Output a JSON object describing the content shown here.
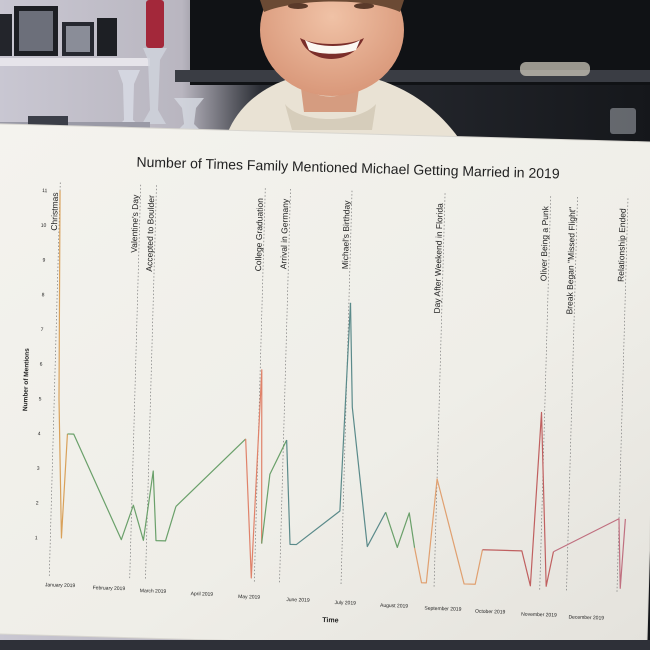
{
  "chart_data": {
    "type": "line",
    "title": "Number of Times Family Mentioned Michael Getting Married in 2019",
    "xlabel": "Time",
    "ylabel": "Number of Mentions",
    "yticks": [
      1,
      2,
      3,
      4,
      5,
      6,
      7,
      8,
      9,
      10,
      11
    ],
    "ylim": [
      0,
      11
    ],
    "xticks": [
      "January 2019",
      "February 2019",
      "March 2019",
      "April 2019",
      "May 2019",
      "June 2019",
      "July 2019",
      "August 2019",
      "September 2019",
      "October 2019",
      "November 2019",
      "December 2019"
    ],
    "events": [
      {
        "label": "Christmas",
        "date": "2018-12-25"
      },
      {
        "label": "Valentine's Day",
        "date": "2019-02-14"
      },
      {
        "label": "Accepted to Boulder",
        "date": "2019-02-24"
      },
      {
        "label": "College Graduation",
        "date": "2019-05-04"
      },
      {
        "label": "Arrival in Germany",
        "date": "2019-05-20"
      },
      {
        "label": "Michael's Birthday",
        "date": "2019-06-28"
      },
      {
        "label": "Day After Weekend in Florida",
        "date": "2019-08-26"
      },
      {
        "label": "Oliver Being a Punk",
        "date": "2019-11-01"
      },
      {
        "label": "Break Began \"Missed Flight\"",
        "date": "2019-11-18"
      },
      {
        "label": "Relationship Ended",
        "date": "2019-12-20"
      }
    ],
    "series": [
      {
        "color": "#d9a15a",
        "x": [
          "2018-12-25",
          "2018-12-28",
          "2019-01-01",
          "2019-01-03"
        ],
        "y": [
          11,
          5,
          1,
          4
        ]
      },
      {
        "color": "#6aa06a",
        "x": [
          "2019-01-03",
          "2019-01-07",
          "2019-02-08",
          "2019-02-15",
          "2019-02-22",
          "2019-02-27",
          "2019-03-02",
          "2019-03-08",
          "2019-03-14"
        ],
        "y": [
          4,
          4,
          1,
          2,
          1,
          3,
          1,
          1,
          2
        ]
      },
      {
        "color": "#6aa06a",
        "x": [
          "2019-03-14",
          "2019-04-26"
        ],
        "y": [
          2,
          4
        ]
      },
      {
        "color": "#e0826a",
        "x": [
          "2019-04-26",
          "2019-05-02",
          "2019-05-05",
          "2019-05-08"
        ],
        "y": [
          4,
          0,
          6,
          1
        ]
      },
      {
        "color": "#6aa06a",
        "x": [
          "2019-05-08",
          "2019-05-12",
          "2019-05-22"
        ],
        "y": [
          1,
          3,
          4
        ]
      },
      {
        "color": "#5a8a8a",
        "x": [
          "2019-05-22",
          "2019-05-26",
          "2019-05-30",
          "2019-06-26",
          "2019-06-29"
        ],
        "y": [
          4,
          1,
          1,
          2,
          8
        ]
      },
      {
        "color": "#5a8a8a",
        "x": [
          "2019-06-29",
          "2019-07-02",
          "2019-07-14",
          "2019-07-25"
        ],
        "y": [
          8,
          5,
          1,
          2
        ]
      },
      {
        "color": "#6aa06a",
        "x": [
          "2019-07-25",
          "2019-08-02",
          "2019-08-09",
          "2019-08-13"
        ],
        "y": [
          2,
          1,
          2,
          1
        ]
      },
      {
        "color": "#e0a070",
        "x": [
          "2019-08-13",
          "2019-08-18",
          "2019-08-21",
          "2019-08-26",
          "2019-09-14",
          "2019-09-21",
          "2019-09-25"
        ],
        "y": [
          1,
          0,
          0,
          3,
          0,
          0,
          1
        ]
      },
      {
        "color": "#c06060",
        "x": [
          "2019-09-25",
          "2019-10-04",
          "2019-10-20",
          "2019-10-26",
          "2019-10-30",
          "2019-11-05",
          "2019-11-09"
        ],
        "y": [
          1,
          1,
          1,
          0,
          5,
          0,
          1
        ]
      },
      {
        "color": "#c07080",
        "x": [
          "2019-11-09",
          "2019-12-20",
          "2019-12-22",
          "2019-12-24"
        ],
        "y": [
          1,
          2,
          0,
          2
        ]
      }
    ],
    "grid": false,
    "legend": "none"
  }
}
